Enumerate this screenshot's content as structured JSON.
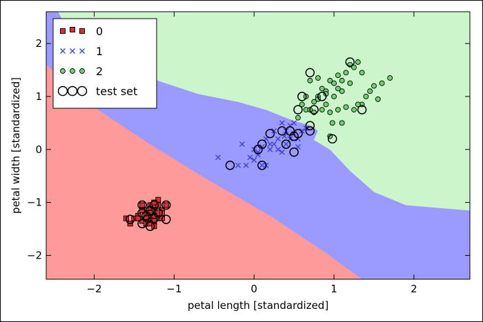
{
  "chart_data": {
    "type": "scatter",
    "title": "",
    "xlabel": "petal length [standardized]",
    "ylabel": "petal width [standardized]",
    "xlim": [
      -2.6,
      2.7
    ],
    "ylim": [
      -2.45,
      2.6
    ],
    "xticks": [
      -2,
      -1,
      0,
      1,
      2
    ],
    "xtick_labels": [
      "−2",
      "−1",
      "0",
      "1",
      "2"
    ],
    "yticks": [
      -2,
      -1,
      0,
      1,
      2
    ],
    "ytick_labels": [
      "−2",
      "−1",
      "0",
      "1",
      "2"
    ],
    "grid": false,
    "legend_position": "top-left",
    "decision_regions": [
      {
        "class": "0",
        "color": "#ff9a9a",
        "polygon": [
          [
            -2.6,
            1.6
          ],
          [
            -2.0,
            0.8
          ],
          [
            -1.3,
            0.1
          ],
          [
            -0.6,
            -0.55
          ],
          [
            0.2,
            -1.25
          ],
          [
            0.9,
            -1.95
          ],
          [
            1.35,
            -2.45
          ],
          [
            -2.6,
            -2.45
          ]
        ]
      },
      {
        "class": "1",
        "color": "#9b9bff",
        "polygon": [
          [
            -2.45,
            2.6
          ],
          [
            -2.2,
            1.9
          ],
          [
            -1.4,
            1.4
          ],
          [
            -0.7,
            1.05
          ],
          [
            -0.2,
            0.9
          ],
          [
            0.15,
            0.75
          ],
          [
            0.4,
            0.6
          ],
          [
            0.55,
            0.52
          ],
          [
            0.72,
            0.45
          ],
          [
            0.8,
            0.35
          ],
          [
            0.75,
            0.18
          ],
          [
            0.95,
            0.0
          ],
          [
            1.2,
            -0.4
          ],
          [
            1.5,
            -0.8
          ],
          [
            1.9,
            -1.05
          ],
          [
            2.3,
            -1.1
          ],
          [
            2.7,
            -1.15
          ],
          [
            2.7,
            -2.45
          ],
          [
            1.35,
            -2.45
          ],
          [
            0.9,
            -1.95
          ],
          [
            0.2,
            -1.25
          ],
          [
            -0.6,
            -0.55
          ],
          [
            -1.3,
            0.1
          ],
          [
            -2.0,
            0.8
          ],
          [
            -2.6,
            1.6
          ],
          [
            -2.6,
            2.6
          ]
        ]
      },
      {
        "class": "2",
        "color": "#ccf5cc",
        "polygon": [
          [
            -2.45,
            2.6
          ],
          [
            2.7,
            2.6
          ],
          [
            2.7,
            -1.15
          ],
          [
            2.3,
            -1.1
          ],
          [
            1.9,
            -1.05
          ],
          [
            1.5,
            -0.8
          ],
          [
            1.2,
            -0.4
          ],
          [
            0.95,
            0.0
          ],
          [
            0.75,
            0.18
          ],
          [
            0.8,
            0.35
          ],
          [
            0.72,
            0.45
          ],
          [
            0.55,
            0.52
          ],
          [
            0.4,
            0.6
          ],
          [
            0.15,
            0.75
          ],
          [
            -0.2,
            0.9
          ],
          [
            -0.7,
            1.05
          ],
          [
            -1.4,
            1.4
          ],
          [
            -2.2,
            1.9
          ]
        ]
      }
    ],
    "series": [
      {
        "name": "0",
        "marker": "square",
        "color": "#e03030",
        "points": [
          [
            -1.25,
            -1.05
          ],
          [
            -1.3,
            -1.1
          ],
          [
            -1.2,
            -1.05
          ],
          [
            -1.25,
            -1.15
          ],
          [
            -1.35,
            -1.2
          ],
          [
            -1.3,
            -1.3
          ],
          [
            -1.2,
            -1.3
          ],
          [
            -1.25,
            -1.35
          ],
          [
            -1.15,
            -1.3
          ],
          [
            -1.4,
            -1.35
          ],
          [
            -1.45,
            -1.25
          ],
          [
            -1.35,
            -1.4
          ],
          [
            -1.3,
            -1.25
          ],
          [
            -1.2,
            -1.2
          ],
          [
            -1.15,
            -1.15
          ],
          [
            -1.25,
            -1.25
          ],
          [
            -1.4,
            -1.15
          ],
          [
            -1.3,
            -1.05
          ],
          [
            -1.35,
            -1.3
          ],
          [
            -1.5,
            -1.3
          ],
          [
            -1.6,
            -1.3
          ],
          [
            -1.55,
            -1.4
          ],
          [
            -1.3,
            -1.4
          ],
          [
            -1.25,
            -1.45
          ],
          [
            -1.2,
            -0.95
          ],
          [
            -1.1,
            -1.05
          ],
          [
            -1.25,
            -1.0
          ],
          [
            -1.15,
            -1.2
          ],
          [
            -1.4,
            -1.05
          ],
          [
            -1.45,
            -1.3
          ],
          [
            -1.3,
            -1.2
          ]
        ]
      },
      {
        "name": "1",
        "marker": "x",
        "color": "#3b3bd6",
        "points": [
          [
            -0.45,
            -0.15
          ],
          [
            -0.2,
            -0.3
          ],
          [
            -0.1,
            -0.3
          ],
          [
            -0.05,
            -0.15
          ],
          [
            0.0,
            -0.2
          ],
          [
            0.05,
            -0.1
          ],
          [
            0.1,
            -0.3
          ],
          [
            0.15,
            -0.3
          ],
          [
            0.2,
            0.0
          ],
          [
            0.25,
            0.1
          ],
          [
            0.3,
            0.0
          ],
          [
            0.35,
            -0.05
          ],
          [
            0.4,
            0.1
          ],
          [
            0.45,
            0.2
          ],
          [
            0.5,
            0.3
          ],
          [
            0.55,
            0.2
          ],
          [
            0.6,
            0.35
          ],
          [
            0.4,
            0.35
          ],
          [
            0.3,
            0.2
          ],
          [
            0.2,
            0.1
          ],
          [
            0.1,
            0.05
          ],
          [
            0.0,
            0.0
          ],
          [
            -0.15,
            0.1
          ],
          [
            0.35,
            0.5
          ],
          [
            0.45,
            0.45
          ],
          [
            0.55,
            0.05
          ],
          [
            0.65,
            0.4
          ],
          [
            0.05,
            -0.05
          ],
          [
            0.25,
            0.35
          ],
          [
            0.5,
            0.5
          ],
          [
            0.38,
            0.25
          ],
          [
            0.15,
            0.2
          ]
        ]
      },
      {
        "name": "2",
        "marker": "circle",
        "color": "#6fd36f",
        "points": [
          [
            0.65,
            0.75
          ],
          [
            0.7,
            0.75
          ],
          [
            0.75,
            0.9
          ],
          [
            0.8,
            1.0
          ],
          [
            0.85,
            1.15
          ],
          [
            0.9,
            1.1
          ],
          [
            0.95,
            1.3
          ],
          [
            1.0,
            1.25
          ],
          [
            1.05,
            1.4
          ],
          [
            1.1,
            1.3
          ],
          [
            1.15,
            1.45
          ],
          [
            1.2,
            1.6
          ],
          [
            1.25,
            1.55
          ],
          [
            1.3,
            1.65
          ],
          [
            1.35,
            1.45
          ],
          [
            1.4,
            1.0
          ],
          [
            1.45,
            1.1
          ],
          [
            1.5,
            1.2
          ],
          [
            1.6,
            1.25
          ],
          [
            1.7,
            1.35
          ],
          [
            1.55,
            0.95
          ],
          [
            1.35,
            0.85
          ],
          [
            1.25,
            0.75
          ],
          [
            1.15,
            0.8
          ],
          [
            1.05,
            0.75
          ],
          [
            0.95,
            0.7
          ],
          [
            0.85,
            0.75
          ],
          [
            0.75,
            0.7
          ],
          [
            0.6,
            0.85
          ],
          [
            0.7,
            1.3
          ],
          [
            0.8,
            1.35
          ],
          [
            0.9,
            0.85
          ],
          [
            0.55,
            0.6
          ],
          [
            0.9,
            1.05
          ],
          [
            1.0,
            1.0
          ],
          [
            1.1,
            1.1
          ],
          [
            1.2,
            1.25
          ],
          [
            1.05,
            1.15
          ],
          [
            0.98,
            0.5
          ],
          [
            1.1,
            0.5
          ],
          [
            1.3,
            0.85
          ],
          [
            0.95,
            0.25
          ],
          [
            0.8,
            0.95
          ],
          [
            0.65,
            1.0
          ]
        ]
      },
      {
        "name": "test set",
        "marker": "open-circle",
        "color": "#000000",
        "points": [
          [
            -1.55,
            -1.32
          ],
          [
            -1.4,
            -1.05
          ],
          [
            -1.4,
            -1.2
          ],
          [
            -1.3,
            -1.15
          ],
          [
            -1.25,
            -1.3
          ],
          [
            -1.35,
            -1.25
          ],
          [
            -1.2,
            -1.2
          ],
          [
            -1.1,
            -1.05
          ],
          [
            -1.1,
            -1.32
          ],
          [
            -1.3,
            -1.45
          ],
          [
            -1.4,
            -1.4
          ],
          [
            -1.25,
            -1.05
          ],
          [
            -0.3,
            -0.3
          ],
          [
            0.1,
            -0.3
          ],
          [
            0.1,
            0.1
          ],
          [
            0.05,
            0.0
          ],
          [
            0.2,
            0.3
          ],
          [
            0.35,
            0.35
          ],
          [
            0.4,
            0.1
          ],
          [
            0.45,
            0.35
          ],
          [
            0.5,
            0.25
          ],
          [
            0.55,
            0.3
          ],
          [
            0.5,
            -0.05
          ],
          [
            0.7,
            0.35
          ],
          [
            0.7,
            0.45
          ],
          [
            0.7,
            1.45
          ],
          [
            0.6,
            1.0
          ],
          [
            0.55,
            0.75
          ],
          [
            0.75,
            0.75
          ],
          [
            0.98,
            0.2
          ],
          [
            1.35,
            0.75
          ],
          [
            1.2,
            1.65
          ],
          [
            0.85,
            1.0
          ]
        ]
      }
    ]
  }
}
